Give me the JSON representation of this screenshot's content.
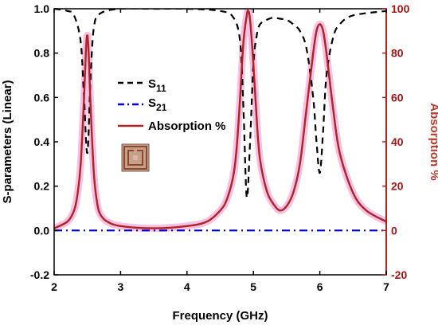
{
  "chart_data": {
    "type": "line",
    "xlabel": "Frequency (GHz)",
    "ylabel_left": "S-parameters (Linear)",
    "ylabel_right": "Absorption %",
    "xlim": [
      2,
      7
    ],
    "ylim_left": [
      -0.2,
      1.0
    ],
    "ylim_right": [
      -20,
      100
    ],
    "xticks": [
      "2",
      "3",
      "4",
      "5",
      "6",
      "7"
    ],
    "yticks_left": [
      "-0.2",
      "0.0",
      "0.2",
      "0.4",
      "0.6",
      "0.8",
      "1.0"
    ],
    "yticks_right": [
      "-20",
      "0",
      "20",
      "40",
      "60",
      "80",
      "100"
    ],
    "legend_placement": "center-left",
    "series": [
      {
        "name": "S11",
        "name_main": "S",
        "name_sub": "11",
        "axis": "left",
        "color": "#000000",
        "style": "dash",
        "x": [
          2.0,
          2.2,
          2.3,
          2.4,
          2.45,
          2.5,
          2.55,
          2.6,
          2.7,
          3.0,
          3.5,
          4.0,
          4.5,
          4.7,
          4.8,
          4.85,
          4.9,
          4.95,
          5.0,
          5.05,
          5.1,
          5.2,
          5.3,
          5.4,
          5.5,
          5.6,
          5.7,
          5.8,
          5.9,
          5.95,
          6.0,
          6.05,
          6.1,
          6.2,
          6.3,
          6.5,
          7.0
        ],
        "y": [
          1.0,
          0.99,
          0.97,
          0.85,
          0.6,
          0.35,
          0.7,
          0.92,
          0.98,
          1.0,
          1.0,
          1.0,
          0.99,
          0.96,
          0.85,
          0.55,
          0.15,
          0.4,
          0.75,
          0.88,
          0.93,
          0.95,
          0.96,
          0.955,
          0.95,
          0.93,
          0.9,
          0.82,
          0.6,
          0.4,
          0.26,
          0.45,
          0.7,
          0.87,
          0.93,
          0.97,
          0.99
        ]
      },
      {
        "name": "S21",
        "name_main": "S",
        "name_sub": "21",
        "axis": "left",
        "color": "#0000cc",
        "style": "dashdot",
        "x": [
          2.0,
          7.0
        ],
        "y": [
          0.0,
          0.0
        ]
      },
      {
        "name": "Absorption %",
        "axis": "right",
        "color": "#b22222",
        "style": "solid",
        "x": [
          2.0,
          2.2,
          2.3,
          2.35,
          2.4,
          2.45,
          2.48,
          2.5,
          2.52,
          2.55,
          2.6,
          2.65,
          2.7,
          2.8,
          3.0,
          3.5,
          4.0,
          4.3,
          4.5,
          4.6,
          4.7,
          4.75,
          4.8,
          4.85,
          4.9,
          4.92,
          4.95,
          5.0,
          5.05,
          5.1,
          5.2,
          5.3,
          5.4,
          5.5,
          5.6,
          5.7,
          5.8,
          5.9,
          5.95,
          6.0,
          6.05,
          6.1,
          6.2,
          6.3,
          6.5,
          6.7,
          7.0
        ],
        "y": [
          1,
          4,
          9,
          16,
          30,
          60,
          82,
          88,
          80,
          55,
          25,
          12,
          7,
          4,
          2,
          1,
          2,
          4,
          9,
          14,
          25,
          38,
          60,
          85,
          97,
          99,
          95,
          75,
          50,
          32,
          18,
          12,
          9,
          11,
          17,
          30,
          55,
          80,
          90,
          93,
          90,
          80,
          55,
          35,
          17,
          9,
          4
        ]
      }
    ]
  }
}
